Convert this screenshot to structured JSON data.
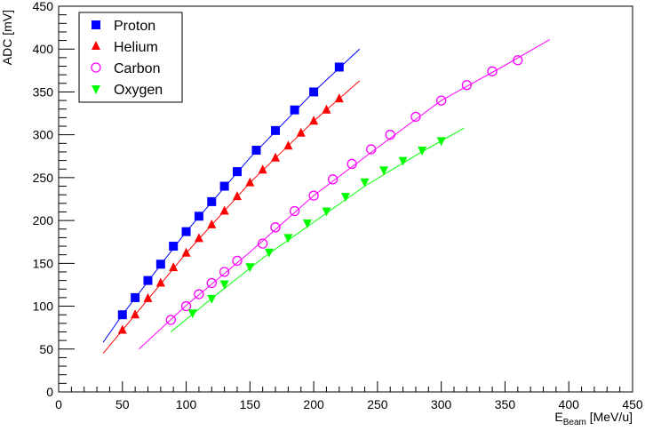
{
  "chart_data": {
    "type": "scatter",
    "title": "",
    "xlabel": "E",
    "xlabel_sub": "Beam",
    "xlabel_unit": " [MeV/u]",
    "ylabel": "ADC [mV]",
    "xlim": [
      0,
      450
    ],
    "ylim": [
      0,
      450
    ],
    "x_ticks": [
      0,
      50,
      100,
      150,
      200,
      250,
      300,
      350,
      400,
      450
    ],
    "y_ticks": [
      0,
      50,
      100,
      150,
      200,
      250,
      300,
      350,
      400,
      450
    ],
    "grid": false,
    "legend_position": "top-left",
    "series": [
      {
        "name": "Proton",
        "color": "#0000ff",
        "marker": "square",
        "x": [
          50,
          60,
          70,
          80,
          90,
          100,
          110,
          120,
          130,
          140,
          155,
          170,
          185,
          200,
          220
        ],
        "y": [
          90,
          110,
          130,
          149,
          170,
          187,
          205,
          222,
          240,
          257,
          282,
          305,
          329,
          350,
          379
        ],
        "fit": {
          "x_range": [
            35,
            236
          ],
          "points": [
            [
              35,
              58
            ],
            [
              50,
              90
            ],
            [
              100,
              187
            ],
            [
              150,
              273
            ],
            [
              200,
              350
            ],
            [
              236,
              400
            ]
          ]
        }
      },
      {
        "name": "Helium",
        "color": "#ff0000",
        "marker": "triangle-up",
        "x": [
          50,
          60,
          70,
          80,
          90,
          100,
          110,
          120,
          130,
          140,
          150,
          160,
          170,
          180,
          190,
          200,
          210,
          220
        ],
        "y": [
          72,
          90,
          109,
          127,
          145,
          162,
          179,
          195,
          211,
          228,
          244,
          259,
          273,
          287,
          302,
          316,
          329,
          342
        ],
        "fit": {
          "x_range": [
            35,
            236
          ],
          "points": [
            [
              35,
              45
            ],
            [
              50,
              72
            ],
            [
              100,
              162
            ],
            [
              150,
              244
            ],
            [
              200,
              316
            ],
            [
              236,
              363
            ]
          ]
        }
      },
      {
        "name": "Carbon",
        "color": "#ff00ff",
        "marker": "circle-open",
        "x": [
          88,
          100,
          110,
          120,
          130,
          140,
          160,
          170,
          185,
          200,
          215,
          230,
          245,
          260,
          280,
          300,
          320,
          340,
          360
        ],
        "y": [
          84,
          100,
          114,
          127,
          140,
          153,
          173,
          192,
          211,
          229,
          248,
          266,
          283,
          300,
          321,
          340,
          358,
          374,
          387
        ],
        "fit": {
          "x_range": [
            63,
            385
          ],
          "points": [
            [
              63,
              50
            ],
            [
              100,
              101
            ],
            [
              150,
              163
            ],
            [
              200,
              229
            ],
            [
              250,
              285
            ],
            [
              300,
              340
            ],
            [
              350,
              381
            ],
            [
              385,
              411
            ]
          ]
        }
      },
      {
        "name": "Oxygen",
        "color": "#00ff00",
        "marker": "triangle-down",
        "x": [
          105,
          120,
          130,
          150,
          165,
          180,
          195,
          210,
          225,
          240,
          255,
          270,
          285,
          300
        ],
        "y": [
          92,
          109,
          126,
          146,
          163,
          180,
          197,
          211,
          228,
          245,
          259,
          270,
          282,
          293
        ],
        "fit": {
          "x_range": [
            88,
            318
          ],
          "points": [
            [
              88,
              70
            ],
            [
              120,
              109
            ],
            [
              160,
              156
            ],
            [
              200,
              198
            ],
            [
              240,
              240
            ],
            [
              280,
              276
            ],
            [
              318,
              308
            ]
          ]
        }
      }
    ]
  }
}
